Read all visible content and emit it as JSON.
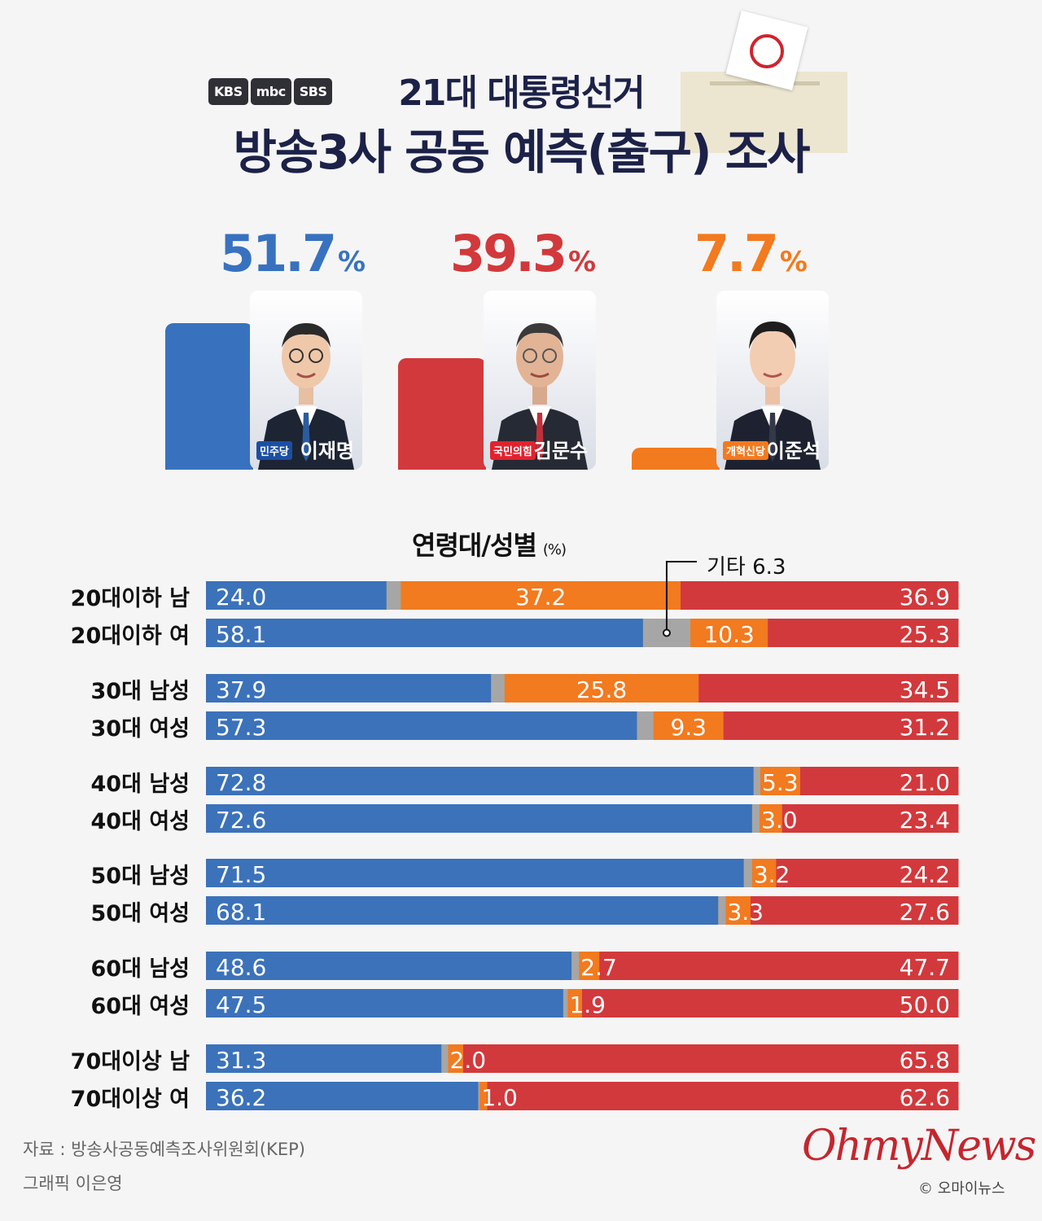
{
  "header": {
    "broadcasters": [
      "KBS",
      "mbc",
      "SBS"
    ],
    "title_line1": "21대 대통령선거",
    "title_line2": "방송3사 공동 예측(출구) 조사"
  },
  "candidates": [
    {
      "name": "이재명",
      "party": "민주당",
      "percent": 51.7,
      "percent_text": "51.7",
      "unit": "%",
      "color": "#3872bf"
    },
    {
      "name": "김문수",
      "party": "국민의힘",
      "percent": 39.3,
      "percent_text": "39.3",
      "unit": "%",
      "color": "#d2393c"
    },
    {
      "name": "이준석",
      "party": "개혁신당",
      "percent": 7.7,
      "percent_text": "7.7",
      "unit": "%",
      "color": "#f27a1f"
    }
  ],
  "chart_heading": {
    "title": "연령대/성별",
    "unit": "(%)",
    "other_label": "기타 6.3"
  },
  "chart_data": {
    "type": "bar",
    "orientation": "horizontal",
    "stacked": true,
    "categories": [
      "20대이하 남",
      "20대이하 여",
      "30대 남성",
      "30대 여성",
      "40대 남성",
      "40대 여성",
      "50대 남성",
      "50대 여성",
      "60대 남성",
      "60대 여성",
      "70대이상 남",
      "70대이상 여"
    ],
    "series": [
      {
        "color": "#3b72ba",
        "values": [
          24.0,
          58.1,
          37.9,
          57.3,
          72.8,
          72.6,
          71.5,
          68.1,
          48.6,
          47.5,
          31.3,
          36.2
        ]
      },
      {
        "color": "#a6a6a6",
        "values": [
          1.9,
          6.3,
          1.8,
          2.2,
          0.9,
          1.0,
          1.1,
          1.0,
          1.0,
          0.6,
          0.9,
          0.2
        ]
      },
      {
        "color": "#f27a1f",
        "values": [
          37.2,
          10.3,
          25.8,
          9.3,
          5.3,
          3.0,
          3.2,
          3.3,
          2.7,
          1.9,
          2.0,
          1.0
        ]
      },
      {
        "color": "#d2393c",
        "values": [
          36.9,
          25.3,
          34.5,
          31.2,
          21.0,
          23.4,
          24.2,
          27.6,
          47.7,
          50.0,
          65.8,
          62.6
        ]
      }
    ],
    "labels": [
      [
        "24.0",
        "37.2",
        "36.9"
      ],
      [
        "58.1",
        "10.3",
        "25.3"
      ],
      [
        "37.9",
        "25.8",
        "34.5"
      ],
      [
        "57.3",
        "9.3",
        "31.2"
      ],
      [
        "72.8",
        "5.3",
        "21.0"
      ],
      [
        "72.6",
        "3.0",
        "23.4"
      ],
      [
        "71.5",
        "3.2",
        "24.2"
      ],
      [
        "68.1",
        "3.3",
        "27.6"
      ],
      [
        "48.6",
        "2.7",
        "47.7"
      ],
      [
        "47.5",
        "1.9",
        "50.0"
      ],
      [
        "31.3",
        "2.0",
        "65.8"
      ],
      [
        "36.2",
        "1.0",
        "62.6"
      ]
    ],
    "xlim": [
      0,
      100
    ],
    "grid": false,
    "legend": "none"
  },
  "footer": {
    "source": "자료 : 방송사공동예측조사위원회(KEP)",
    "credit": "그래픽 이은영",
    "logo": "OhmyNews",
    "copyright": "© 오마이뉴스"
  }
}
